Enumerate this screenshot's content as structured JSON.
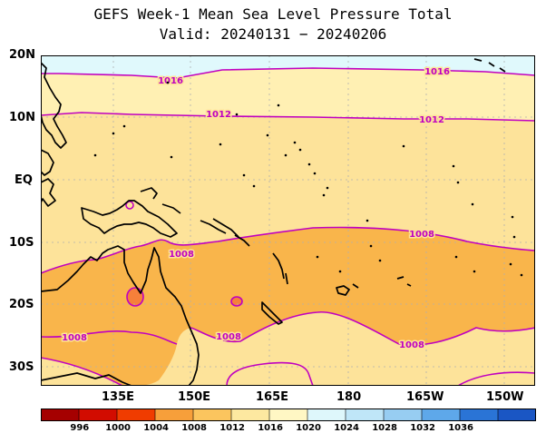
{
  "title": "GEFS Week-1 Mean Sea Level Pressure Total",
  "subtitle": "Valid: 20240131 − 20240206",
  "lat_labels": [
    "20N",
    "10N",
    "EQ",
    "10S",
    "20S",
    "30S"
  ],
  "lon_labels": [
    "135E",
    "150E",
    "165E",
    "180",
    "165W",
    "150W"
  ],
  "contour_labels": [
    "1016",
    "1016",
    "1012",
    "1012",
    "1008",
    "1008",
    "1008",
    "1008",
    "1008"
  ],
  "colorbar": {
    "ticks": [
      "996",
      "1000",
      "1004",
      "1008",
      "1012",
      "1016",
      "1020",
      "1024",
      "1028",
      "1032",
      "1036"
    ],
    "colors": [
      "#a50000",
      "#d20c00",
      "#f03c00",
      "#f79f3a",
      "#fbc55e",
      "#fde8a0",
      "#fff7c4",
      "#def7fb",
      "#bfe6f8",
      "#97cdf2",
      "#5ea8ea",
      "#2a74d6",
      "#1a56c4"
    ]
  },
  "fill_colors": {
    "p1016": "#e0f9fc",
    "p1012": "#fff0b3",
    "p1008": "#fde39a",
    "p1004": "#f9b54b",
    "p1000": "#f6803a",
    "contour": "#c000c0"
  }
}
